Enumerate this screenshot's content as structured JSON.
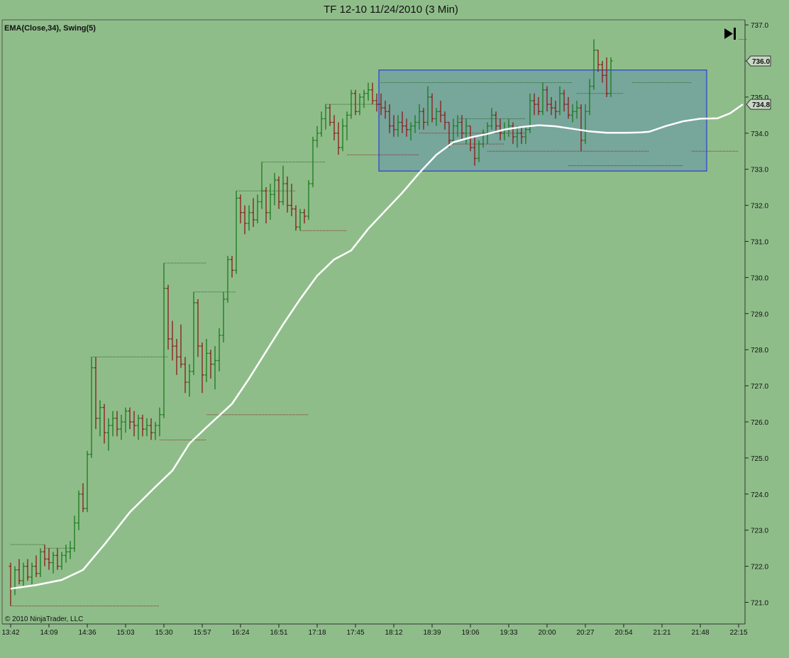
{
  "window": {
    "title": "TF 12-10  11/24/2010 (3 Min)"
  },
  "colors": {
    "background": "#8fbd8a",
    "up_bar": "#1a7a1a",
    "down_bar": "#8b1a1a",
    "ema": "#ffffff",
    "box_stroke": "#2a3fd6",
    "box_fill": "#6f9fa0",
    "swing_high": "#2d6b2d",
    "swing_low": "#8b2a2a"
  },
  "chart_data": {
    "type": "ohlc",
    "title": "TF 12-10  11/24/2010 (3 Min)",
    "indicator_label": "EMA(Close,34), Swing(5)",
    "copyright": "© 2010 NinjaTrader, LLC",
    "ylim": [
      720.7,
      737.2
    ],
    "y_ticks": [
      "721.0",
      "722.0",
      "723.0",
      "724.0",
      "725.0",
      "726.0",
      "727.0",
      "728.0",
      "729.0",
      "730.0",
      "731.0",
      "732.0",
      "733.0",
      "734.0",
      "735.0",
      "736.0",
      "737.0"
    ],
    "x_ticks": [
      "13:42",
      "14:09",
      "14:36",
      "15:03",
      "15:30",
      "15:57",
      "16:24",
      "16:51",
      "17:18",
      "17:45",
      "18:12",
      "18:39",
      "19:06",
      "19:33",
      "20:00",
      "20:27",
      "20:54",
      "21:21",
      "21:48",
      "22:15"
    ],
    "price_markers": [
      {
        "label": "736.0",
        "value": 736.0
      },
      {
        "label": "734.8",
        "value": 734.8
      }
    ],
    "grid": false,
    "bar_interval_minutes": 3,
    "bars": [
      [
        722.0,
        722.1,
        720.9,
        721.4
      ],
      [
        721.4,
        722.0,
        721.2,
        721.9
      ],
      [
        721.9,
        722.2,
        721.5,
        721.6
      ],
      [
        721.6,
        722.1,
        721.4,
        722.0
      ],
      [
        722.0,
        722.2,
        721.6,
        721.7
      ],
      [
        721.7,
        722.1,
        721.5,
        722.0
      ],
      [
        722.0,
        722.3,
        721.7,
        721.8
      ],
      [
        721.8,
        722.5,
        721.7,
        722.4
      ],
      [
        722.4,
        722.6,
        722.0,
        722.2
      ],
      [
        722.2,
        722.5,
        721.9,
        722.1
      ],
      [
        722.1,
        722.4,
        721.8,
        722.3
      ],
      [
        722.3,
        722.5,
        721.9,
        722.0
      ],
      [
        722.0,
        722.4,
        721.9,
        722.3
      ],
      [
        722.3,
        722.6,
        722.1,
        722.4
      ],
      [
        722.4,
        722.7,
        722.2,
        722.5
      ],
      [
        722.5,
        723.4,
        722.4,
        723.2
      ],
      [
        723.2,
        724.1,
        723.0,
        724.0
      ],
      [
        724.0,
        724.3,
        723.5,
        723.6
      ],
      [
        723.6,
        725.2,
        723.5,
        725.1
      ],
      [
        725.1,
        727.8,
        725.0,
        727.5
      ],
      [
        727.5,
        727.8,
        725.8,
        726.1
      ],
      [
        726.1,
        726.6,
        725.6,
        726.4
      ],
      [
        726.4,
        726.5,
        725.4,
        725.7
      ],
      [
        725.7,
        726.1,
        725.2,
        725.9
      ],
      [
        725.9,
        726.3,
        725.6,
        726.1
      ],
      [
        726.1,
        726.3,
        725.6,
        725.8
      ],
      [
        725.8,
        726.2,
        725.5,
        726.0
      ],
      [
        726.0,
        726.4,
        725.7,
        726.3
      ],
      [
        726.3,
        726.4,
        725.8,
        726.0
      ],
      [
        726.0,
        726.3,
        725.6,
        725.9
      ],
      [
        725.9,
        726.2,
        725.5,
        726.1
      ],
      [
        726.1,
        726.2,
        725.6,
        725.8
      ],
      [
        725.8,
        726.1,
        725.6,
        725.9
      ],
      [
        725.9,
        726.1,
        725.5,
        725.7
      ],
      [
        725.7,
        726.0,
        725.5,
        725.9
      ],
      [
        725.9,
        726.4,
        725.6,
        726.2
      ],
      [
        726.2,
        730.4,
        726.1,
        729.7
      ],
      [
        729.7,
        729.8,
        728.0,
        728.3
      ],
      [
        728.3,
        728.8,
        727.7,
        728.1
      ],
      [
        728.1,
        728.3,
        727.3,
        727.8
      ],
      [
        727.8,
        728.7,
        727.5,
        727.6
      ],
      [
        727.6,
        727.8,
        726.8,
        727.1
      ],
      [
        727.1,
        727.6,
        726.7,
        727.4
      ],
      [
        727.4,
        729.6,
        727.3,
        729.3
      ],
      [
        729.3,
        729.4,
        727.8,
        728.1
      ],
      [
        728.1,
        728.2,
        726.8,
        727.3
      ],
      [
        727.3,
        728.3,
        727.1,
        727.9
      ],
      [
        727.9,
        728.0,
        727.2,
        727.6
      ],
      [
        727.6,
        728.1,
        726.9,
        727.7
      ],
      [
        727.7,
        728.6,
        727.4,
        728.4
      ],
      [
        728.4,
        729.6,
        728.2,
        729.4
      ],
      [
        729.4,
        730.6,
        729.3,
        730.5
      ],
      [
        730.5,
        730.6,
        730.0,
        730.2
      ],
      [
        730.2,
        732.4,
        730.1,
        732.2
      ],
      [
        732.2,
        732.3,
        731.5,
        731.8
      ],
      [
        731.8,
        732.0,
        731.2,
        731.5
      ],
      [
        731.5,
        732.0,
        731.3,
        731.8
      ],
      [
        731.8,
        732.2,
        731.4,
        731.6
      ],
      [
        731.6,
        732.3,
        731.5,
        732.1
      ],
      [
        732.1,
        733.2,
        731.9,
        732.4
      ],
      [
        732.4,
        732.5,
        731.5,
        731.8
      ],
      [
        731.8,
        732.6,
        731.6,
        732.3
      ],
      [
        732.3,
        732.9,
        732.0,
        732.7
      ],
      [
        732.7,
        732.8,
        731.9,
        732.1
      ],
      [
        732.1,
        733.1,
        732.0,
        732.6
      ],
      [
        732.6,
        732.8,
        731.8,
        732.0
      ],
      [
        732.0,
        732.6,
        731.7,
        731.9
      ],
      [
        731.9,
        732.0,
        731.3,
        731.4
      ],
      [
        731.4,
        731.9,
        731.3,
        731.8
      ],
      [
        731.8,
        731.9,
        731.5,
        731.7
      ],
      [
        731.7,
        732.7,
        731.6,
        732.6
      ],
      [
        732.6,
        733.9,
        732.5,
        733.8
      ],
      [
        733.8,
        734.2,
        733.6,
        734.0
      ],
      [
        734.0,
        734.6,
        733.9,
        734.4
      ],
      [
        734.4,
        734.8,
        734.1,
        734.7
      ],
      [
        734.7,
        734.8,
        734.2,
        734.3
      ],
      [
        734.3,
        734.5,
        733.8,
        734.0
      ],
      [
        734.0,
        734.3,
        733.4,
        733.6
      ],
      [
        733.6,
        734.4,
        733.5,
        734.2
      ],
      [
        734.2,
        734.6,
        733.8,
        734.5
      ],
      [
        734.5,
        735.2,
        734.4,
        735.1
      ],
      [
        735.1,
        735.2,
        734.5,
        734.6
      ],
      [
        734.6,
        735.1,
        734.5,
        735.0
      ],
      [
        735.0,
        735.2,
        734.7,
        735.1
      ],
      [
        735.1,
        735.4,
        734.9,
        735.2
      ],
      [
        735.2,
        735.4,
        734.8,
        734.9
      ],
      [
        734.9,
        735.1,
        734.6,
        734.8
      ],
      [
        734.8,
        735.1,
        734.5,
        734.7
      ],
      [
        734.7,
        734.9,
        734.4,
        734.6
      ],
      [
        734.6,
        734.8,
        734.0,
        734.2
      ],
      [
        734.2,
        734.5,
        733.9,
        734.1
      ],
      [
        734.1,
        734.5,
        733.9,
        734.3
      ],
      [
        734.3,
        734.6,
        734.0,
        734.2
      ],
      [
        734.2,
        734.4,
        733.9,
        734.1
      ],
      [
        734.1,
        734.3,
        733.8,
        734.2
      ],
      [
        734.2,
        734.5,
        734.0,
        734.3
      ],
      [
        734.3,
        734.8,
        734.1,
        734.6
      ],
      [
        734.6,
        734.7,
        734.1,
        734.3
      ],
      [
        734.3,
        735.3,
        734.2,
        735.0
      ],
      [
        735.0,
        735.1,
        734.3,
        734.4
      ],
      [
        734.4,
        734.7,
        734.2,
        734.6
      ],
      [
        734.6,
        734.9,
        734.3,
        734.5
      ],
      [
        734.5,
        734.6,
        734.1,
        734.3
      ],
      [
        734.3,
        734.3,
        733.6,
        733.8
      ],
      [
        733.8,
        734.4,
        733.7,
        734.2
      ],
      [
        734.2,
        734.5,
        733.9,
        734.3
      ],
      [
        734.3,
        734.5,
        733.8,
        734.0
      ],
      [
        734.0,
        734.4,
        733.7,
        734.2
      ],
      [
        734.2,
        734.2,
        733.5,
        733.6
      ],
      [
        733.6,
        733.9,
        733.1,
        733.3
      ],
      [
        733.3,
        733.8,
        733.2,
        733.7
      ],
      [
        733.7,
        734.1,
        733.6,
        734.0
      ],
      [
        734.0,
        734.3,
        733.7,
        734.2
      ],
      [
        734.2,
        734.7,
        734.1,
        734.5
      ],
      [
        734.5,
        734.6,
        734.0,
        734.2
      ],
      [
        734.2,
        734.4,
        733.8,
        734.0
      ],
      [
        734.0,
        734.3,
        733.8,
        734.1
      ],
      [
        734.1,
        734.4,
        733.9,
        734.2
      ],
      [
        734.2,
        734.3,
        733.7,
        733.9
      ],
      [
        733.9,
        734.2,
        733.6,
        734.0
      ],
      [
        734.0,
        734.2,
        733.7,
        733.9
      ],
      [
        733.9,
        734.2,
        733.7,
        734.1
      ],
      [
        734.1,
        735.1,
        734.0,
        734.9
      ],
      [
        734.9,
        735.1,
        734.5,
        734.8
      ],
      [
        734.8,
        735.0,
        734.5,
        734.6
      ],
      [
        734.6,
        735.4,
        734.5,
        735.2
      ],
      [
        735.2,
        735.3,
        734.6,
        734.8
      ],
      [
        734.8,
        735.0,
        734.5,
        734.7
      ],
      [
        734.7,
        734.9,
        734.4,
        734.6
      ],
      [
        734.6,
        735.3,
        734.5,
        735.1
      ],
      [
        735.1,
        735.2,
        734.6,
        734.8
      ],
      [
        734.8,
        735.0,
        734.4,
        734.5
      ],
      [
        734.5,
        734.8,
        734.3,
        734.6
      ],
      [
        734.6,
        734.9,
        734.4,
        734.7
      ],
      [
        734.7,
        734.8,
        733.5,
        733.8
      ],
      [
        733.8,
        734.8,
        733.7,
        734.6
      ],
      [
        734.6,
        735.5,
        734.5,
        735.3
      ],
      [
        735.3,
        736.6,
        735.2,
        736.3
      ],
      [
        736.3,
        736.3,
        735.7,
        735.9
      ],
      [
        735.9,
        736.0,
        735.4,
        735.6
      ],
      [
        735.6,
        736.1,
        735.0,
        735.1
      ],
      [
        735.1,
        736.1,
        735.0,
        736.0
      ]
    ],
    "ema_points": [
      [
        0,
        721.38
      ],
      [
        6,
        721.48
      ],
      [
        12,
        721.62
      ],
      [
        17,
        721.9
      ],
      [
        22,
        722.6
      ],
      [
        28,
        723.5
      ],
      [
        34,
        724.2
      ],
      [
        38,
        724.65
      ],
      [
        42,
        725.4
      ],
      [
        46,
        725.85
      ],
      [
        52,
        726.5
      ],
      [
        56,
        727.2
      ],
      [
        60,
        727.95
      ],
      [
        64,
        728.7
      ],
      [
        68,
        729.4
      ],
      [
        72,
        730.05
      ],
      [
        76,
        730.5
      ],
      [
        80,
        730.75
      ],
      [
        84,
        731.35
      ],
      [
        88,
        731.85
      ],
      [
        92,
        732.35
      ],
      [
        96,
        732.9
      ],
      [
        100,
        733.4
      ],
      [
        104,
        733.75
      ],
      [
        108,
        733.88
      ],
      [
        112,
        733.98
      ],
      [
        116,
        734.1
      ],
      [
        120,
        734.17
      ],
      [
        124,
        734.22
      ],
      [
        128,
        734.19
      ],
      [
        132,
        734.12
      ],
      [
        136,
        734.05
      ],
      [
        140,
        734.01
      ],
      [
        144,
        734.01
      ],
      [
        148,
        734.02
      ],
      [
        150,
        734.04
      ],
      [
        154,
        734.2
      ],
      [
        158,
        734.33
      ],
      [
        162,
        734.4
      ],
      [
        166,
        734.41
      ],
      [
        169,
        734.55
      ],
      [
        172,
        734.8
      ]
    ],
    "swing_highs": [
      [
        722.6,
        0,
        8
      ],
      [
        722.5,
        8,
        15
      ],
      [
        727.8,
        19,
        37
      ],
      [
        730.4,
        36,
        46
      ],
      [
        729.6,
        43,
        53
      ],
      [
        732.4,
        53,
        67
      ],
      [
        733.2,
        59,
        74
      ],
      [
        734.8,
        74,
        87
      ],
      [
        735.4,
        87,
        132
      ],
      [
        734.4,
        105,
        121
      ],
      [
        735.1,
        133,
        144
      ],
      [
        735.4,
        146,
        160
      ],
      [
        736.6,
        171,
        173
      ]
    ],
    "swing_lows": [
      [
        720.9,
        0,
        35
      ],
      [
        725.5,
        35,
        46
      ],
      [
        726.2,
        46,
        70
      ],
      [
        731.3,
        68,
        79
      ],
      [
        733.4,
        79,
        96
      ],
      [
        734.0,
        96,
        121
      ],
      [
        733.7,
        103,
        116
      ],
      [
        733.5,
        112,
        150
      ],
      [
        733.1,
        131,
        158
      ],
      [
        733.5,
        160,
        171
      ]
    ],
    "box": {
      "x_from_bar": 86.5,
      "x_to_bar": 163.5,
      "y_top": 735.75,
      "y_bottom": 732.95
    },
    "x_tick_bar_index": [
      0,
      9,
      18,
      27,
      36,
      45,
      54,
      63,
      72,
      81,
      90,
      99,
      108,
      117,
      126,
      135,
      144,
      153,
      162,
      171
    ]
  }
}
